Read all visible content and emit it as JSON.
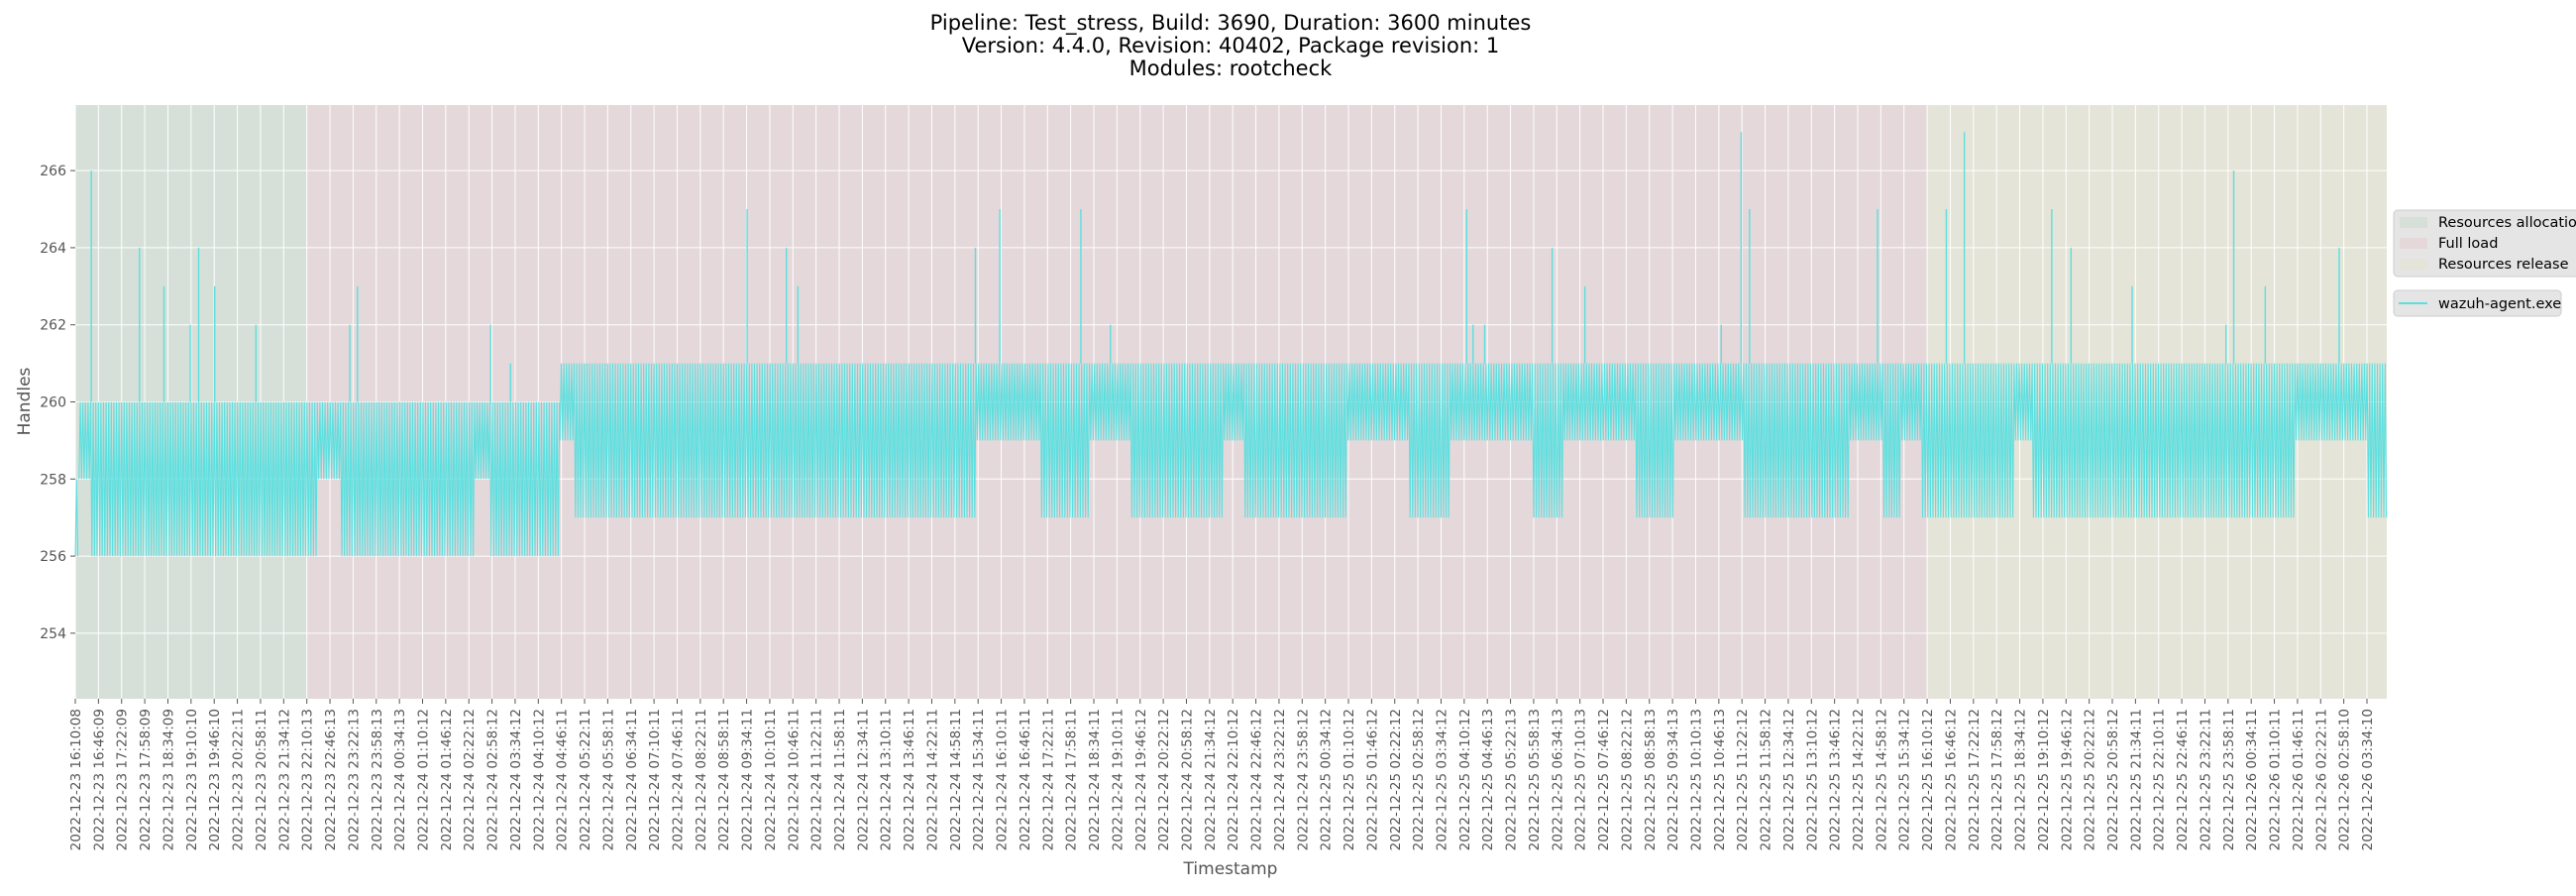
{
  "chart_data": {
    "type": "line",
    "title_lines": [
      "Pipeline: Test_stress, Build: 3690, Duration: 3600 minutes",
      "Version: 4.4.0, Revision: 40402, Package revision: 1",
      "Modules: rootcheck"
    ],
    "xlabel": "Timestamp",
    "ylabel": "Handles",
    "ylim": [
      252.3,
      267.7
    ],
    "xlim": [
      "2022-12-23 16:10:08",
      "2022-12-26 04:05:00"
    ],
    "grid": true,
    "legend_position": "right, outside",
    "y_ticks": [
      "254",
      "256",
      "258",
      "260",
      "262",
      "264",
      "266"
    ],
    "x_ticks": [
      "2022-12-23 16:10:08",
      "2022-12-23 16:46:09",
      "2022-12-23 17:22:09",
      "2022-12-23 17:58:09",
      "2022-12-23 18:34:09",
      "2022-12-23 19:10:10",
      "2022-12-23 19:46:10",
      "2022-12-23 20:22:11",
      "2022-12-23 20:58:11",
      "2022-12-23 21:34:12",
      "2022-12-23 22:10:13",
      "2022-12-23 22:46:13",
      "2022-12-23 23:22:13",
      "2022-12-23 23:58:13",
      "2022-12-24 00:34:13",
      "2022-12-24 01:10:12",
      "2022-12-24 01:46:12",
      "2022-12-24 02:22:12",
      "2022-12-24 02:58:12",
      "2022-12-24 03:34:12",
      "2022-12-24 04:10:12",
      "2022-12-24 04:46:11",
      "2022-12-24 05:22:11",
      "2022-12-24 05:58:11",
      "2022-12-24 06:34:11",
      "2022-12-24 07:10:11",
      "2022-12-24 07:46:11",
      "2022-12-24 08:22:11",
      "2022-12-24 08:58:11",
      "2022-12-24 09:34:11",
      "2022-12-24 10:10:11",
      "2022-12-24 10:46:11",
      "2022-12-24 11:22:11",
      "2022-12-24 11:58:11",
      "2022-12-24 12:34:11",
      "2022-12-24 13:10:11",
      "2022-12-24 13:46:11",
      "2022-12-24 14:22:11",
      "2022-12-24 14:58:11",
      "2022-12-24 15:34:11",
      "2022-12-24 16:10:11",
      "2022-12-24 16:46:11",
      "2022-12-24 17:22:11",
      "2022-12-24 17:58:11",
      "2022-12-24 18:34:11",
      "2022-12-24 19:10:11",
      "2022-12-24 19:46:12",
      "2022-12-24 20:22:12",
      "2022-12-24 20:58:12",
      "2022-12-24 21:34:12",
      "2022-12-24 22:10:12",
      "2022-12-24 22:46:12",
      "2022-12-24 23:22:12",
      "2022-12-24 23:58:12",
      "2022-12-25 00:34:12",
      "2022-12-25 01:10:12",
      "2022-12-25 01:46:12",
      "2022-12-25 02:22:12",
      "2022-12-25 02:58:12",
      "2022-12-25 03:34:12",
      "2022-12-25 04:10:12",
      "2022-12-25 04:46:13",
      "2022-12-25 05:22:13",
      "2022-12-25 05:58:13",
      "2022-12-25 06:34:13",
      "2022-12-25 07:10:13",
      "2022-12-25 07:46:12",
      "2022-12-25 08:22:12",
      "2022-12-25 08:58:13",
      "2022-12-25 09:34:13",
      "2022-12-25 10:10:13",
      "2022-12-25 10:46:13",
      "2022-12-25 11:22:12",
      "2022-12-25 11:58:12",
      "2022-12-25 12:34:12",
      "2022-12-25 13:10:12",
      "2022-12-25 13:46:12",
      "2022-12-25 14:22:12",
      "2022-12-25 14:58:12",
      "2022-12-25 15:34:12",
      "2022-12-25 16:10:12",
      "2022-12-25 16:46:12",
      "2022-12-25 17:22:12",
      "2022-12-25 17:58:12",
      "2022-12-25 18:34:12",
      "2022-12-25 19:10:12",
      "2022-12-25 19:46:12",
      "2022-12-25 20:22:12",
      "2022-12-25 20:58:12",
      "2022-12-25 21:34:11",
      "2022-12-25 22:10:11",
      "2022-12-25 22:46:11",
      "2022-12-25 23:22:11",
      "2022-12-25 23:58:11",
      "2022-12-26 00:34:11",
      "2022-12-26 01:10:11",
      "2022-12-26 01:46:11",
      "2022-12-26 02:22:11",
      "2022-12-26 02:58:10",
      "2022-12-26 03:34:10"
    ],
    "phases": [
      {
        "name": "Resources allocation",
        "from": "2022-12-23 16:10:08",
        "to": "2022-12-23 22:10:13",
        "color": "#d6e0d8"
      },
      {
        "name": "Full load",
        "from": "2022-12-23 22:10:13",
        "to": "2022-12-25 16:10:12",
        "color": "#e4d8da"
      },
      {
        "name": "Resources release",
        "from": "2022-12-25 16:10:12",
        "to": "2022-12-26 04:05:00",
        "color": "#e4e4d8"
      }
    ],
    "series": [
      {
        "name": "wazuh-agent.exe",
        "color": "#5ddfdf",
        "bands": [
          {
            "from": "2022-12-23 16:10:08",
            "to": "2022-12-23 16:16:00",
            "low": 254,
            "high": 258
          },
          {
            "from": "2022-12-23 16:16:00",
            "to": "2022-12-24 04:44:00",
            "low": 256,
            "high": 260
          },
          {
            "from": "2022-12-24 04:44:00",
            "to": "2022-12-26 04:05:00",
            "low": 257,
            "high": 261
          }
        ],
        "spikes": [
          {
            "t": "2022-12-23 16:35",
            "value": 266
          },
          {
            "t": "2022-12-23 17:50",
            "value": 264
          },
          {
            "t": "2022-12-23 18:28",
            "value": 263
          },
          {
            "t": "2022-12-23 19:09",
            "value": 262
          },
          {
            "t": "2022-12-23 19:22",
            "value": 264
          },
          {
            "t": "2022-12-23 19:47",
            "value": 263
          },
          {
            "t": "2022-12-23 20:51",
            "value": 262
          },
          {
            "t": "2022-12-23 23:17",
            "value": 262
          },
          {
            "t": "2022-12-23 23:29",
            "value": 263
          },
          {
            "t": "2022-12-24 02:56",
            "value": 262
          },
          {
            "t": "2022-12-24 03:27",
            "value": 261
          },
          {
            "t": "2022-12-24 09:35",
            "value": 265
          },
          {
            "t": "2022-12-24 10:36",
            "value": 264
          },
          {
            "t": "2022-12-24 10:54",
            "value": 263
          },
          {
            "t": "2022-12-24 15:30",
            "value": 264
          },
          {
            "t": "2022-12-24 16:08",
            "value": 265
          },
          {
            "t": "2022-12-24 18:14",
            "value": 265
          },
          {
            "t": "2022-12-24 19:00",
            "value": 262
          },
          {
            "t": "2022-12-25 04:14",
            "value": 265
          },
          {
            "t": "2022-12-25 04:24",
            "value": 262
          },
          {
            "t": "2022-12-25 04:42",
            "value": 262
          },
          {
            "t": "2022-12-25 06:27",
            "value": 264
          },
          {
            "t": "2022-12-25 07:18",
            "value": 263
          },
          {
            "t": "2022-12-25 10:50",
            "value": 262
          },
          {
            "t": "2022-12-25 11:21",
            "value": 267
          },
          {
            "t": "2022-12-25 11:34",
            "value": 265
          },
          {
            "t": "2022-12-25 14:53",
            "value": 265
          },
          {
            "t": "2022-12-25 16:40",
            "value": 265
          },
          {
            "t": "2022-12-25 17:08",
            "value": 267
          },
          {
            "t": "2022-12-25 19:24",
            "value": 265
          },
          {
            "t": "2022-12-25 19:54",
            "value": 264
          },
          {
            "t": "2022-12-25 21:29",
            "value": 263
          },
          {
            "t": "2022-12-25 23:55",
            "value": 262
          },
          {
            "t": "2022-12-26 00:07",
            "value": 266
          },
          {
            "t": "2022-12-26 00:56",
            "value": 263
          },
          {
            "t": "2022-12-26 02:51",
            "value": 264
          }
        ]
      }
    ],
    "plot_background": "#e5e5e5"
  }
}
